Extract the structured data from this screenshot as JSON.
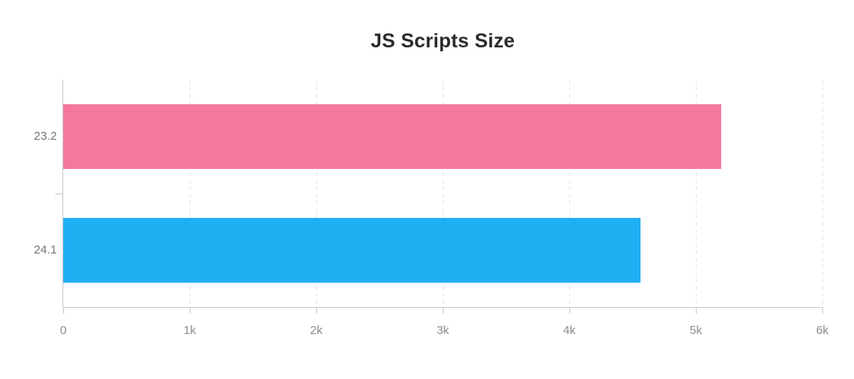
{
  "chart_data": {
    "type": "bar",
    "orientation": "horizontal",
    "title": "JS Scripts Size",
    "categories": [
      "23.2",
      "24.1"
    ],
    "values": [
      5200,
      4565
    ],
    "series": [
      {
        "name": "JS Scripts Size",
        "values": [
          5200,
          4565
        ]
      }
    ],
    "xlabel": "",
    "ylabel": "",
    "xlim": [
      0,
      6000
    ],
    "x_ticks": [
      {
        "value": 0,
        "label": "0"
      },
      {
        "value": 1000,
        "label": "1k"
      },
      {
        "value": 2000,
        "label": "2k"
      },
      {
        "value": 3000,
        "label": "3k"
      },
      {
        "value": 4000,
        "label": "4k"
      },
      {
        "value": 5000,
        "label": "5k"
      },
      {
        "value": 6000,
        "label": "6k"
      }
    ],
    "grid": {
      "vertical": true,
      "style": "dashed"
    },
    "legend": "none",
    "bar_colors": [
      "#F4779D",
      "#1FB0F4"
    ]
  },
  "theme": {
    "background": "#ffffff",
    "title_color": "#2b2b2b",
    "axis_color": "#c8c8c8",
    "grid_color": "#e4e4e4",
    "x_label_color": "#8c8c8c",
    "y_label_color": "#767676"
  }
}
